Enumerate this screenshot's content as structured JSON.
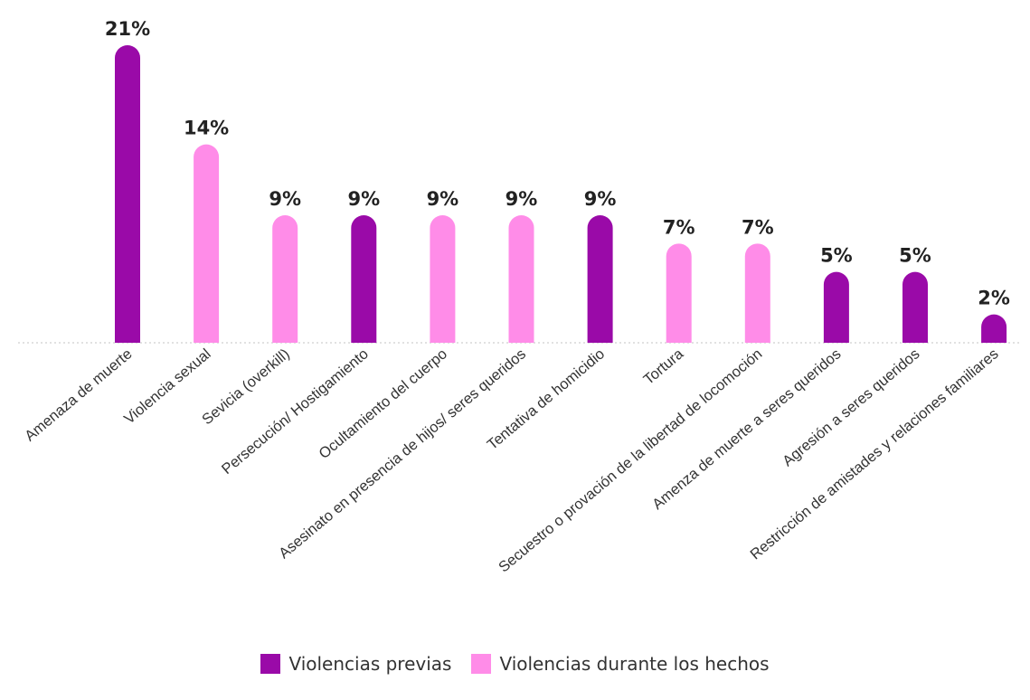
{
  "chart_data": {
    "type": "bar",
    "categories": [
      "Amenaza de muerte",
      "Violencia sexual",
      "Sevicia (overkill)",
      "Persecución/ Hostigamiento",
      "Ocultamiento del cuerpo",
      "Asesinato en presencia de hijos/ seres queridos",
      "Tentativa de homicidio",
      "Tortura",
      "Secuestro o provación de la libertad de locomoción",
      "Amenza de muerte a seres queridos",
      "Agresión a seres queridos",
      "Restricción de amistades y relaciones familiares"
    ],
    "values": [
      21,
      14,
      9,
      9,
      9,
      9,
      9,
      7,
      7,
      5,
      5,
      2
    ],
    "value_labels": [
      "21%",
      "14%",
      "9%",
      "9%",
      "9%",
      "9%",
      "9%",
      "7%",
      "7%",
      "5%",
      "5%",
      "2%"
    ],
    "series_index": [
      0,
      1,
      1,
      0,
      1,
      1,
      0,
      1,
      1,
      0,
      0,
      0
    ],
    "series": [
      {
        "name": "Violencias previas",
        "color": "#9a0aa8"
      },
      {
        "name": "Violencias durante los hechos",
        "color": "#ff8ce8"
      }
    ],
    "ylim": [
      0,
      21
    ],
    "unit": "%",
    "grid": false,
    "legend_position": "bottom"
  }
}
